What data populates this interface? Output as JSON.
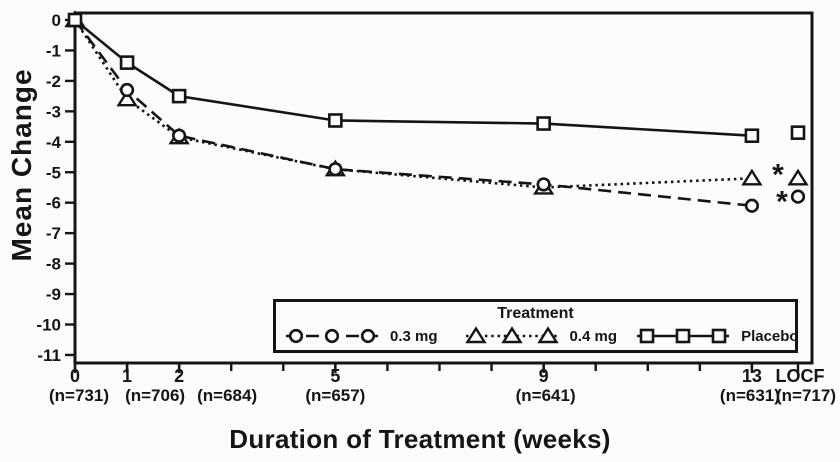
{
  "figure": {
    "background": "#fcfcfb",
    "ink": "#151515"
  },
  "chart_data": {
    "type": "line",
    "title": "",
    "xlabel": "Duration of Treatment (weeks)",
    "ylabel": "Mean Change",
    "ylim": [
      -11,
      0
    ],
    "xlim_weeks": [
      0,
      13
    ],
    "grid": false,
    "y_ticks": [
      0,
      -1,
      -2,
      -3,
      -4,
      -5,
      -6,
      -7,
      -8,
      -9,
      -10,
      -11
    ],
    "x_minor_tick_weeks": [
      0,
      1,
      2,
      3,
      4,
      5,
      6,
      7,
      8,
      9,
      10,
      11,
      12,
      13
    ],
    "x_labeled_ticks": [
      {
        "week": 0,
        "label": "0",
        "n_label": "(n=731)"
      },
      {
        "week": 1,
        "label": "1",
        "n_label": "(n=706)"
      },
      {
        "week": 2,
        "label": "2",
        "n_label": "(n=684)"
      },
      {
        "week": 5,
        "label": "5",
        "n_label": "(n=657)"
      },
      {
        "week": 9,
        "label": "9",
        "n_label": "(n=641)"
      },
      {
        "week": 13,
        "label": "13",
        "n_label": "(n=631)"
      },
      {
        "week": "LOCF",
        "label": "LOCF",
        "n_label": "(n=717)"
      }
    ],
    "legend": {
      "title": "Treatment",
      "position": "bottom-inside-box"
    },
    "series": [
      {
        "name": "0.3 mg",
        "marker": "circle",
        "line_style": "dashed",
        "weeks": [
          0,
          1,
          2,
          5,
          9,
          13
        ],
        "values": [
          0,
          -2.3,
          -3.8,
          -4.9,
          -5.4,
          -6.1
        ],
        "locf_value": -5.8
      },
      {
        "name": "0.4 mg",
        "marker": "triangle",
        "line_style": "dotted",
        "weeks": [
          0,
          1,
          2,
          5,
          9,
          13
        ],
        "values": [
          0,
          -2.6,
          -3.85,
          -4.9,
          -5.5,
          -5.2
        ],
        "locf_value": -5.2
      },
      {
        "name": "Placebo",
        "marker": "square",
        "line_style": "solid",
        "weeks": [
          0,
          1,
          2,
          5,
          9,
          13
        ],
        "values": [
          0,
          -1.4,
          -2.5,
          -3.3,
          -3.4,
          -3.8
        ],
        "locf_value": -3.7
      }
    ],
    "annotations": [
      {
        "symbol": "*",
        "series": "0.4 mg",
        "at": "LOCF"
      },
      {
        "symbol": "*",
        "series": "0.3 mg",
        "at": "LOCF"
      }
    ]
  }
}
